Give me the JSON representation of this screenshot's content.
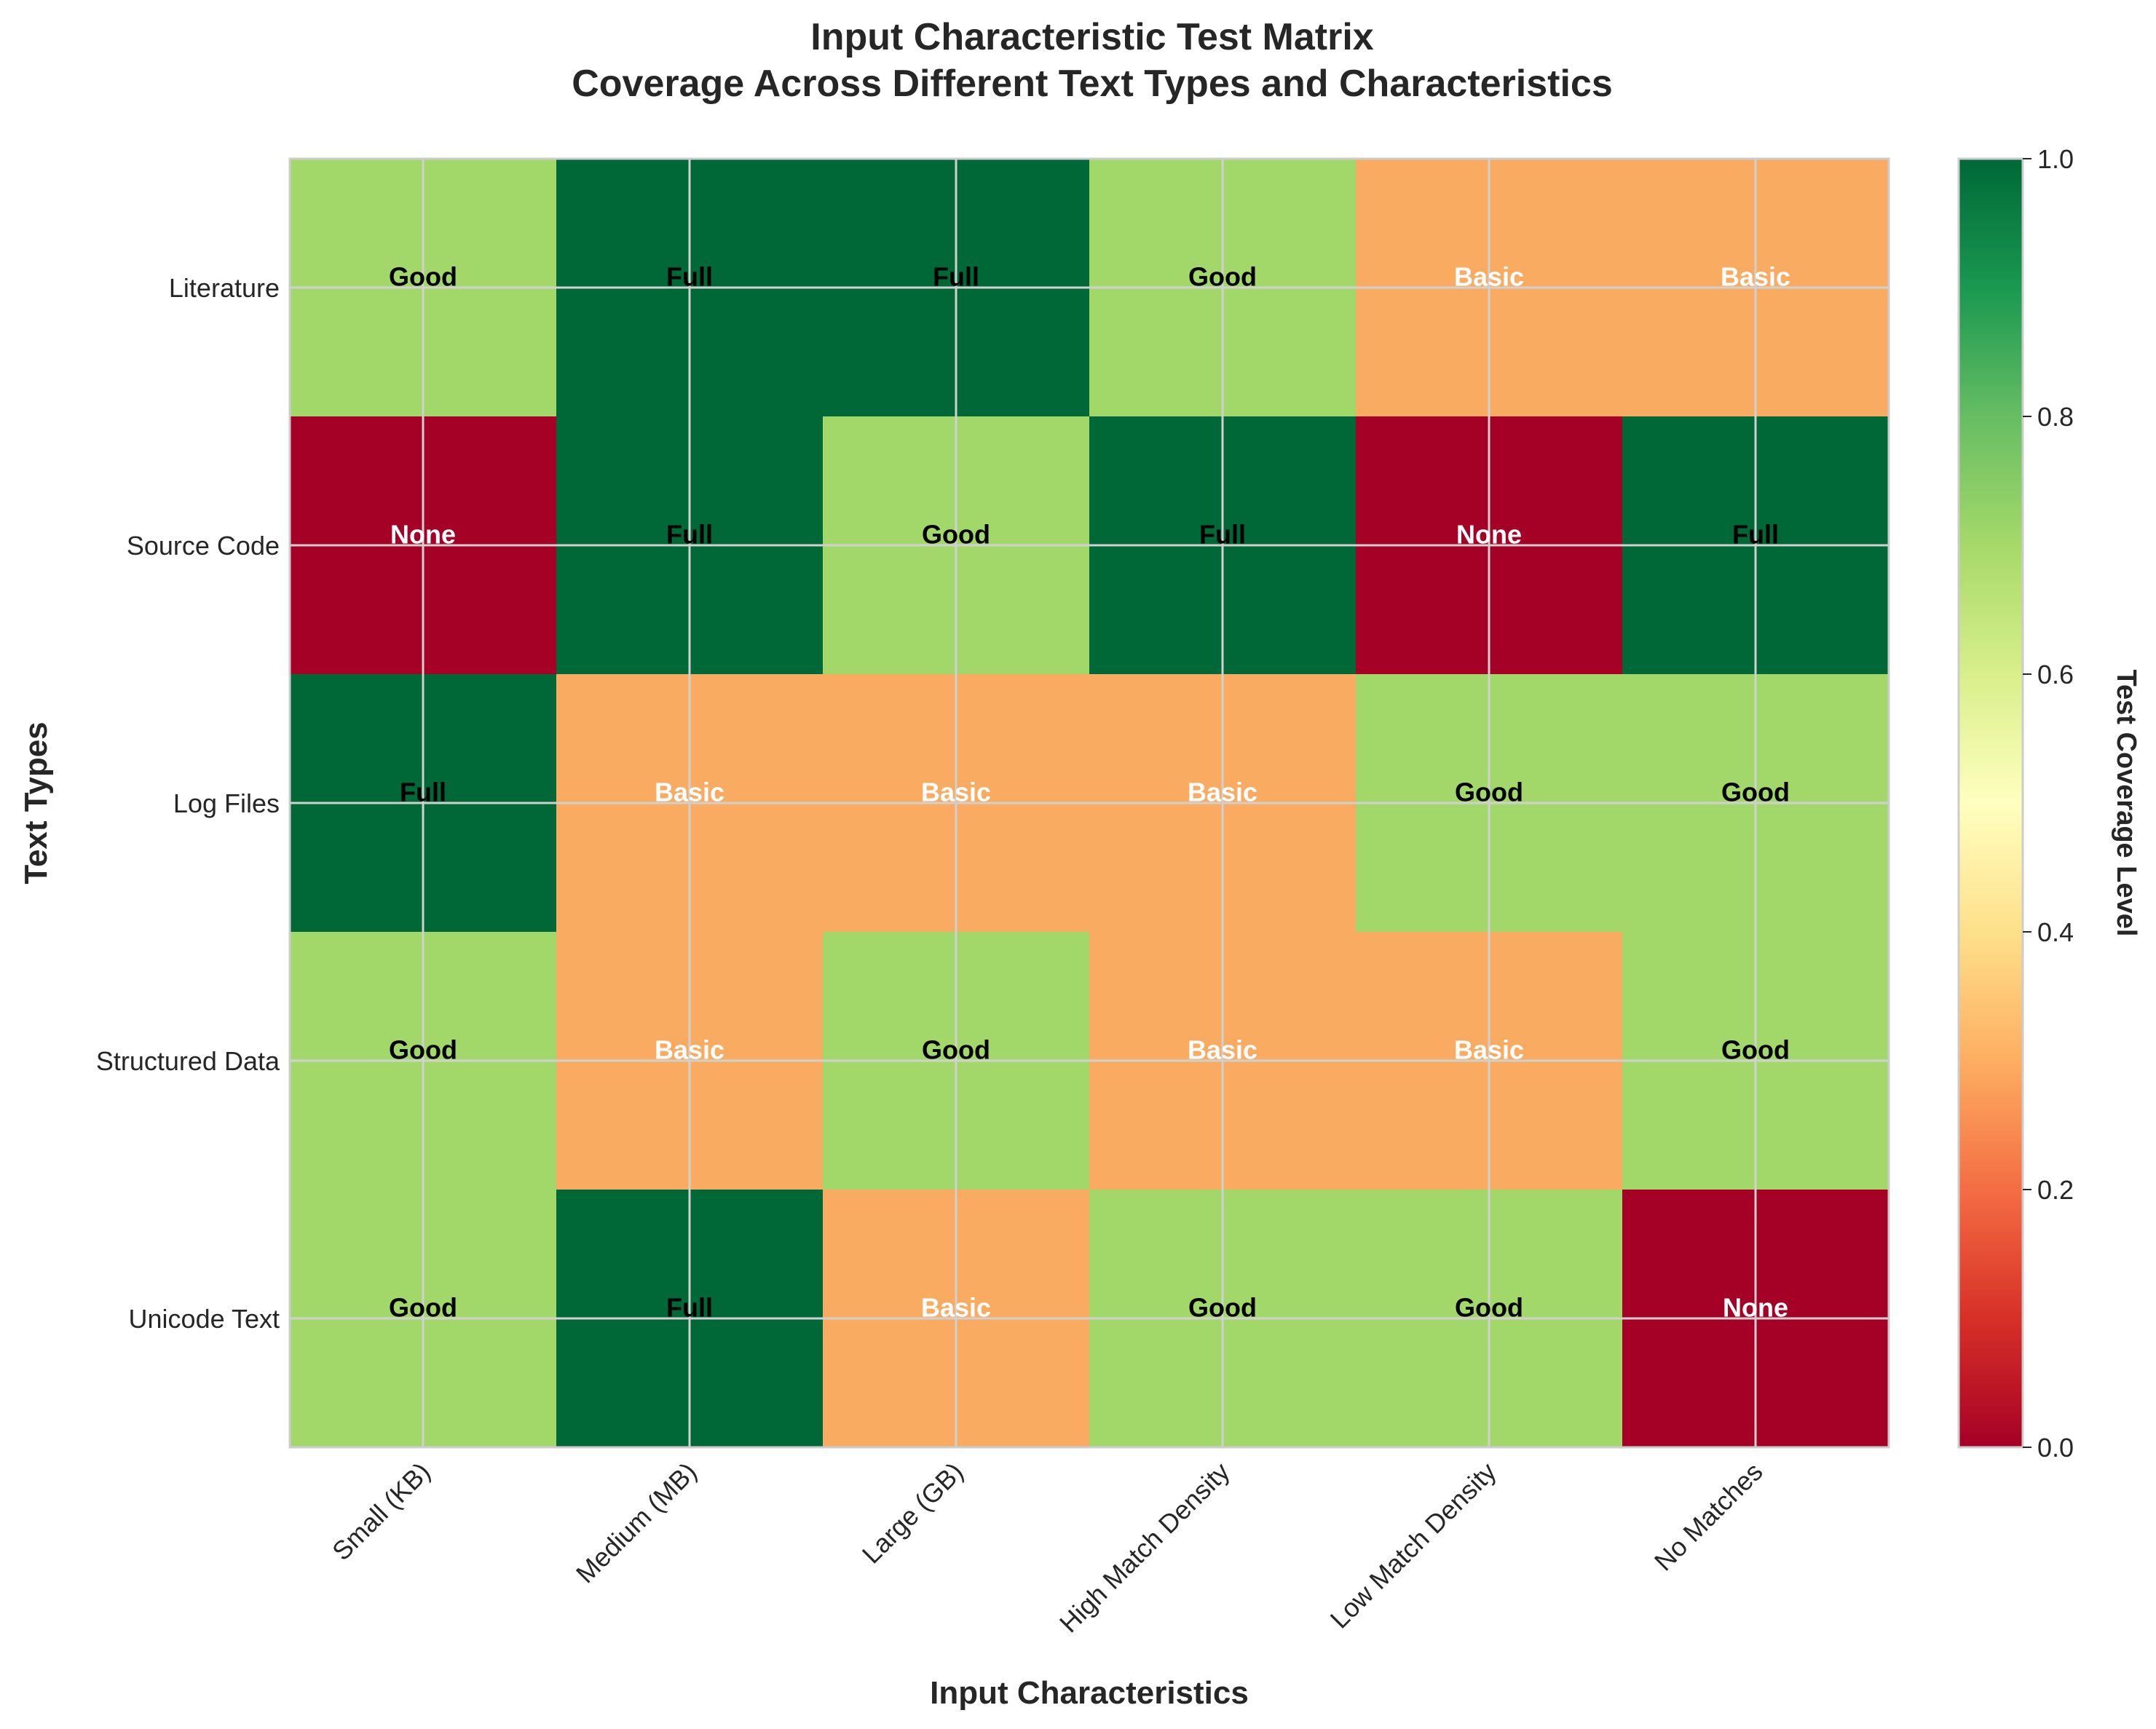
{
  "chart_data": {
    "type": "heatmap",
    "title": "Input Characteristic Test Matrix",
    "subtitle": "Coverage Across Different Text Types and Characteristics",
    "xlabel": "Input Characteristics",
    "ylabel": "Text Types",
    "x_categories": [
      "Small (KB)",
      "Medium (MB)",
      "Large (GB)",
      "High Match Density",
      "Low Match Density",
      "No Matches"
    ],
    "y_categories": [
      "Literature",
      "Source Code",
      "Log Files",
      "Structured Data",
      "Unicode Text"
    ],
    "values": [
      [
        0.67,
        1.0,
        1.0,
        0.67,
        0.33,
        0.33
      ],
      [
        0.0,
        1.0,
        0.67,
        1.0,
        0.0,
        1.0
      ],
      [
        1.0,
        0.33,
        0.33,
        0.33,
        0.67,
        0.67
      ],
      [
        0.67,
        0.33,
        0.67,
        0.33,
        0.33,
        0.67
      ],
      [
        0.67,
        1.0,
        0.33,
        0.67,
        0.67,
        0.0
      ]
    ],
    "labels": [
      [
        "Good",
        "Full",
        "Full",
        "Good",
        "Basic",
        "Basic"
      ],
      [
        "None",
        "Full",
        "Good",
        "Full",
        "None",
        "Full"
      ],
      [
        "Full",
        "Basic",
        "Basic",
        "Basic",
        "Good",
        "Good"
      ],
      [
        "Good",
        "Basic",
        "Good",
        "Basic",
        "Basic",
        "Good"
      ],
      [
        "Good",
        "Full",
        "Basic",
        "Good",
        "Good",
        "None"
      ]
    ],
    "colorbar": {
      "label": "Test Coverage Level",
      "range": [
        0.0,
        1.0
      ],
      "ticks": [
        "0.0",
        "0.2",
        "0.4",
        "0.6",
        "0.8",
        "1.0"
      ],
      "colormap": "RdYlGn"
    },
    "level_colors": {
      "None": "#a50026",
      "Basic": "#f9ac61",
      "Good": "#a2d86a",
      "Full": "#006837"
    },
    "label_colors": {
      "None": "#ffffff",
      "Basic": "#ffffff",
      "Good": "#000000",
      "Full": "#000000"
    },
    "grid": true
  }
}
